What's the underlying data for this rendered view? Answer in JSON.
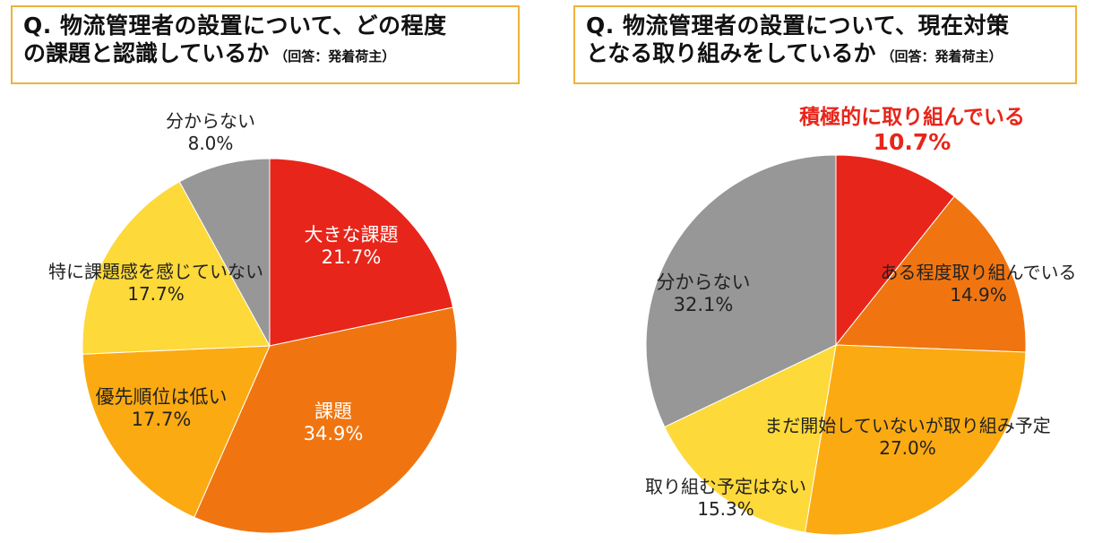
{
  "colors": {
    "red": "#e8251a",
    "dark_orange": "#f07510",
    "orange": "#fbaa12",
    "yellow": "#fdd93a",
    "gray": "#979797",
    "title_border": "#f0b13c",
    "highlight_text": "#e8251a"
  },
  "chart_data": [
    {
      "type": "pie",
      "title_main": "Q. 物流管理者の設置について、どの程度",
      "title_line2": "の課題と認識しているか",
      "title_note": "（回答：発着荷主）",
      "slices": [
        {
          "label": "大きな課題",
          "value": 21.7,
          "value_text": "21.7%",
          "color": "#e8251a"
        },
        {
          "label": "課題",
          "value": 34.9,
          "value_text": "34.9%",
          "color": "#f07510"
        },
        {
          "label": "優先順位は低い",
          "value": 17.7,
          "value_text": "17.7%",
          "color": "#fbaa12"
        },
        {
          "label": "特に課題感を感じていない",
          "value": 17.7,
          "value_text": "17.7%",
          "color": "#fdd93a"
        },
        {
          "label": "分からない",
          "value": 8.0,
          "value_text": "8.0%",
          "color": "#979797"
        }
      ]
    },
    {
      "type": "pie",
      "title_main": "Q. 物流管理者の設置について、現在対策",
      "title_line2": "となる取り組みをしているか",
      "title_note": "（回答：発着荷主）",
      "slices": [
        {
          "label": "積極的に取り組んでいる",
          "value": 10.7,
          "value_text": "10.7%",
          "color": "#e8251a"
        },
        {
          "label": "ある程度取り組んでいる",
          "value": 14.9,
          "value_text": "14.9%",
          "color": "#f07510"
        },
        {
          "label": "まだ開始していないが取り組み予定",
          "value": 27.0,
          "value_text": "27.0%",
          "color": "#fbaa12"
        },
        {
          "label": "取り組む予定はない",
          "value": 15.3,
          "value_text": "15.3%",
          "color": "#fdd93a"
        },
        {
          "label": "分からない",
          "value": 32.1,
          "value_text": "32.1%",
          "color": "#979797"
        }
      ]
    }
  ]
}
